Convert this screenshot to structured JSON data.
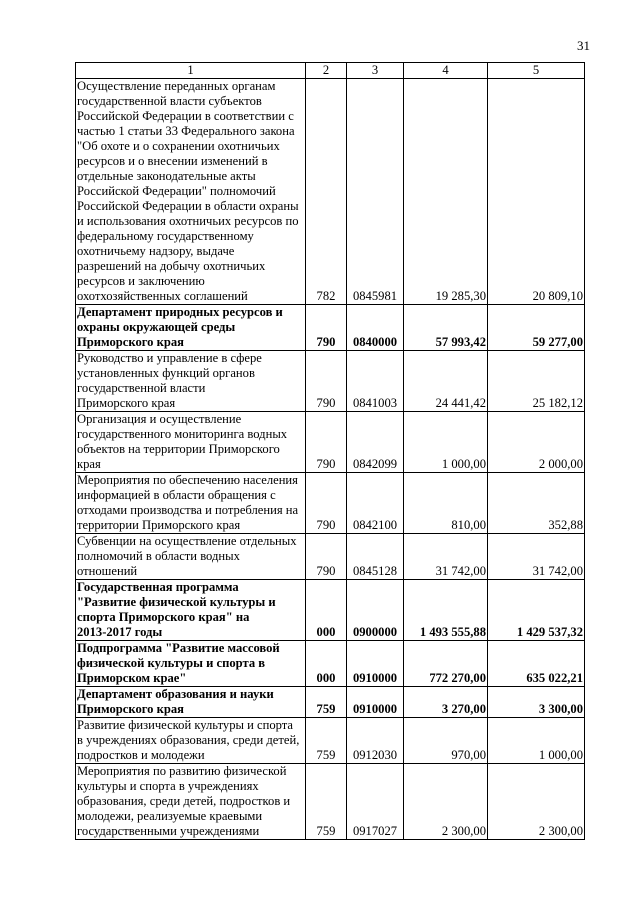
{
  "page_number": "31",
  "table": {
    "headers": [
      "1",
      "2",
      "3",
      "4",
      "5"
    ],
    "rows": [
      {
        "bold": false,
        "name": [
          "Осуществление переданных органам",
          "государственной власти субъектов",
          "Российской Федерации в соответствии с",
          "частью 1 статьи 33 Федерального закона",
          "\"Об охоте и о сохранении охотничьих",
          "ресурсов и о внесении изменений в",
          "отдельные законодательные акты",
          "Российской Федерации\" полномочий",
          "Российской Федерации в области охраны",
          "и использования охотничьих ресурсов по",
          "федеральному государственному",
          "охотничьему надзору, выдаче",
          "разрешений на добычу охотничьих",
          "ресурсов и заключению",
          "охотхозяйственных соглашений"
        ],
        "c2": "782",
        "c3": "0845981",
        "c4": "19 285,30",
        "c5": "20 809,10"
      },
      {
        "bold": true,
        "name": [
          "Департамент природных ресурсов и",
          "охраны окружающей среды",
          "Приморского края"
        ],
        "c2": "790",
        "c3": "0840000",
        "c4": "57 993,42",
        "c5": "59 277,00"
      },
      {
        "bold": false,
        "name": [
          "Руководство и управление в сфере",
          "установленных функций органов",
          "государственной власти",
          "Приморского края"
        ],
        "c2": "790",
        "c3": "0841003",
        "c4": "24 441,42",
        "c5": "25 182,12"
      },
      {
        "bold": false,
        "name": [
          "Организация и осуществление",
          "государственного мониторинга водных",
          "объектов на территории Приморского",
          "края"
        ],
        "c2": "790",
        "c3": "0842099",
        "c4": "1 000,00",
        "c5": "2 000,00"
      },
      {
        "bold": false,
        "name": [
          "Мероприятия по обеспечению населения",
          "информацией в области обращения с",
          "отходами производства и потребления на",
          "территории Приморского края"
        ],
        "c2": "790",
        "c3": "0842100",
        "c4": "810,00",
        "c5": "352,88"
      },
      {
        "bold": false,
        "name": [
          "Субвенции на осуществление отдельных",
          "полномочий в области водных",
          "отношений"
        ],
        "c2": "790",
        "c3": "0845128",
        "c4": "31 742,00",
        "c5": "31 742,00"
      },
      {
        "bold": true,
        "name": [
          "Государственная программа",
          "\"Развитие физической культуры и",
          "спорта Приморского края\" на",
          "2013-2017 годы"
        ],
        "c2": "000",
        "c3": "0900000",
        "c4": "1 493 555,88",
        "c5": "1 429 537,32"
      },
      {
        "bold": true,
        "name": [
          "Подпрограмма \"Развитие массовой",
          "физической культуры и спорта в",
          "Приморском крае\""
        ],
        "c2": "000",
        "c3": "0910000",
        "c4": "772 270,00",
        "c5": "635 022,21"
      },
      {
        "bold": true,
        "name": [
          "Департамент образования и науки",
          "Приморского края"
        ],
        "c2": "759",
        "c3": "0910000",
        "c4": "3 270,00",
        "c5": "3 300,00"
      },
      {
        "bold": false,
        "name": [
          "Развитие физической культуры и спорта",
          "в учреждениях образования, среди детей,",
          "подростков и молодежи"
        ],
        "c2": "759",
        "c3": "0912030",
        "c4": "970,00",
        "c5": "1 000,00"
      },
      {
        "bold": false,
        "name": [
          "Мероприятия по развитию физической",
          "культуры и спорта в учреждениях",
          "образования, среди детей, подростков и",
          "молодежи, реализуемые краевыми",
          "государственными учреждениями"
        ],
        "c2": "759",
        "c3": "0917027",
        "c4": "2 300,00",
        "c5": "2 300,00"
      }
    ]
  }
}
